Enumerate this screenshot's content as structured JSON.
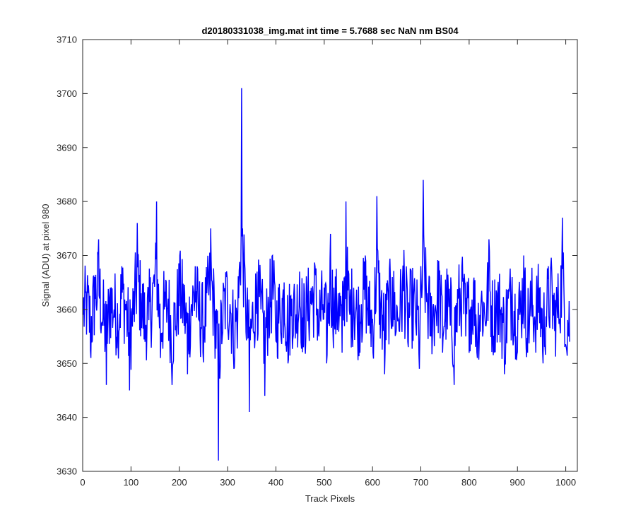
{
  "chart_data": {
    "type": "line",
    "title": "d20180331038_img.mat int time = 5.7688 sec  NaN nm BS04",
    "xlabel": "Track Pixels",
    "ylabel": "Signal (ADU) at pixel 980",
    "xlim": [
      0,
      1024
    ],
    "ylim": [
      3630,
      3710
    ],
    "xticks": [
      0,
      100,
      200,
      300,
      400,
      500,
      600,
      700,
      800,
      900,
      1000
    ],
    "yticks": [
      3630,
      3640,
      3650,
      3660,
      3670,
      3680,
      3690,
      3700,
      3710
    ],
    "grid": false,
    "legend": "none",
    "series": [
      {
        "color": "#0000ff",
        "x_start": 1,
        "x_step": 1,
        "mean": 3660,
        "typical_range": [
          3648,
          3672
        ],
        "values_sampled_every_8_pixels": [
          3659,
          3662,
          3651,
          3666,
          3673,
          3657,
          3646,
          3664,
          3660,
          3655,
          3668,
          3661,
          3645,
          3659,
          3676,
          3663,
          3654,
          3658,
          3665,
          3680,
          3651,
          3660,
          3662,
          3646,
          3657,
          3670,
          3662,
          3648,
          3661,
          3668,
          3658,
          3652,
          3663,
          3675,
          3659,
          3632,
          3655,
          3666,
          3661,
          3649,
          3658,
          3701,
          3663,
          3641,
          3656,
          3667,
          3660,
          3644,
          3661,
          3670,
          3654,
          3658,
          3665,
          3650,
          3662,
          3657,
          3667,
          3653,
          3660,
          3664,
          3668,
          3655,
          3661,
          3650,
          3674,
          3658,
          3663,
          3652,
          3680,
          3659,
          3664,
          3655,
          3661,
          3670,
          3657,
          3652,
          3681,
          3660,
          3648,
          3663,
          3666,
          3656,
          3660,
          3671,
          3654,
          3662,
          3658,
          3649,
          3684,
          3663,
          3655,
          3660,
          3669,
          3652,
          3663,
          3657,
          3646,
          3662,
          3668,
          3655,
          3660,
          3665,
          3651,
          3662,
          3658,
          3673,
          3654,
          3663,
          3660,
          3648,
          3662,
          3666,
          3655,
          3659,
          3670,
          3652,
          3662,
          3657,
          3664,
          3650,
          3661,
          3668,
          3656,
          3660,
          3677,
          3653
        ]
      }
    ]
  }
}
